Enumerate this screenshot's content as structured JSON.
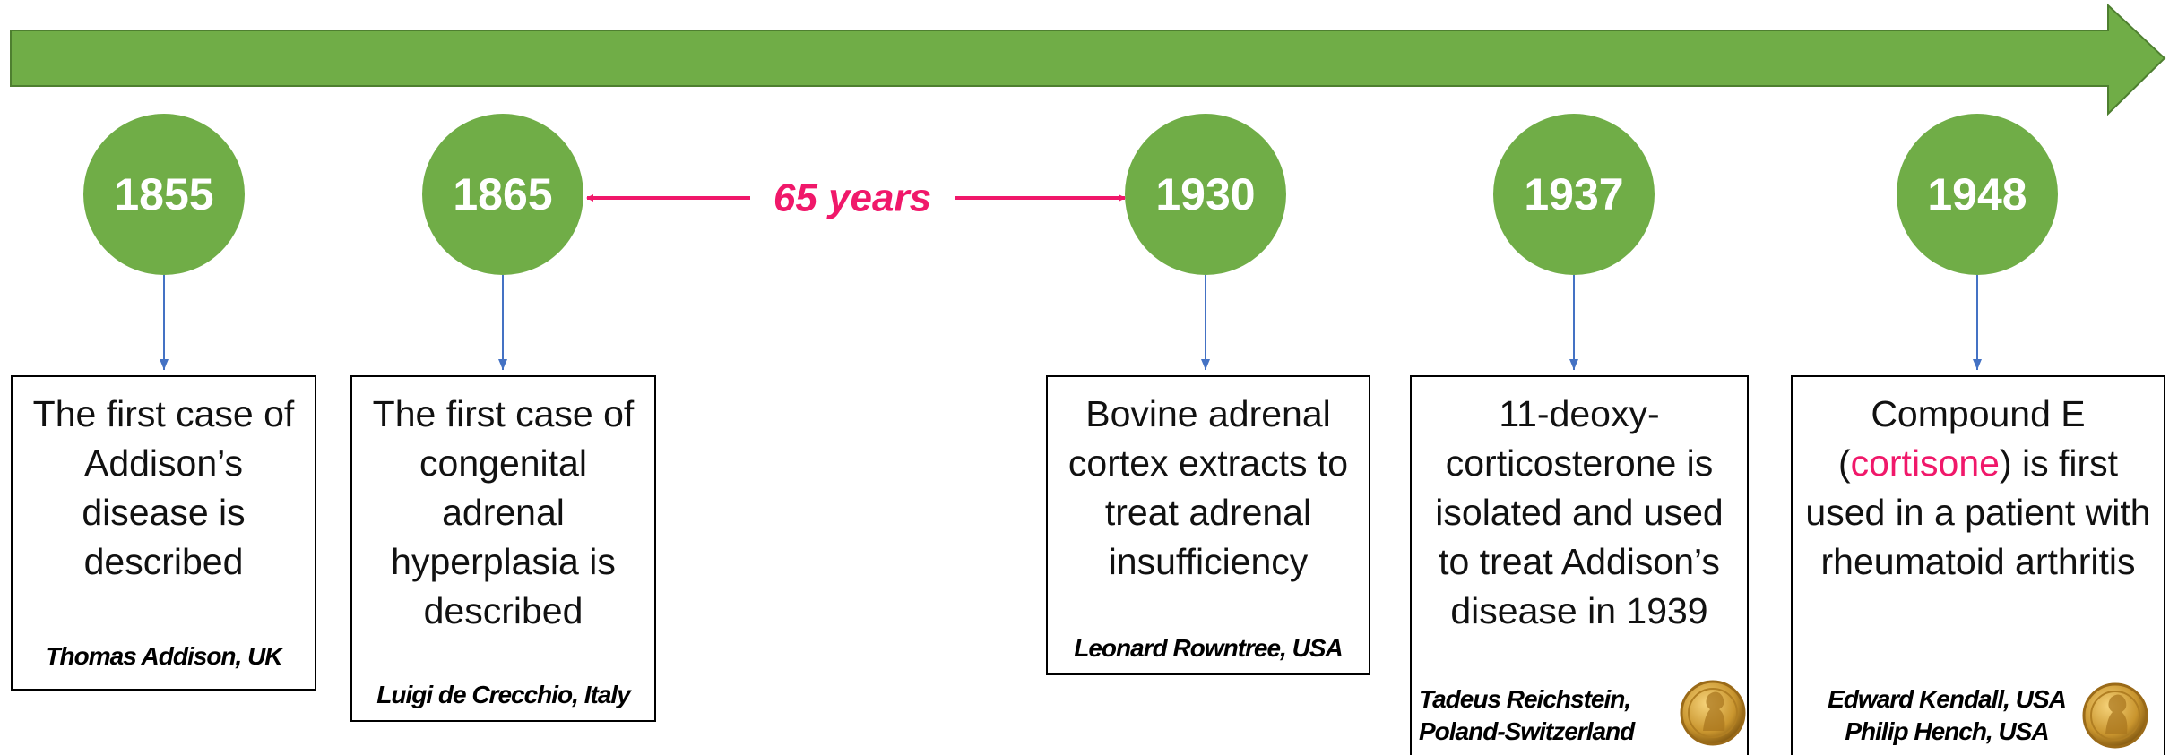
{
  "events": [
    {
      "year": "1855",
      "description": [
        "The first case of Addison’s disease is described"
      ],
      "authors": [
        "Thomas Addison, UK"
      ]
    },
    {
      "year": "1865",
      "description": [
        "The first case of congenital adrenal hyperplasia is described"
      ],
      "authors": [
        "Luigi de Crecchio, Italy"
      ]
    },
    {
      "year": "1930",
      "description": [
        "Bovine adrenal cortex extracts to treat adrenal insufficiency"
      ],
      "authors": [
        "Leonard Rowntree, USA"
      ]
    },
    {
      "year": "1937",
      "description": [
        "11-deoxy-corticosterone is isolated and used to treat Addison’s disease in 1939"
      ],
      "authors": [
        "Tadeus Reichstein,",
        "Poland-Switzerland"
      ]
    },
    {
      "year": "1948",
      "description": [
        "Compound E (",
        "cortisone",
        ") is first used in a patient with rheumatoid arthritis"
      ],
      "authors": [
        "Edward Kendall, USA",
        "Philip Hench, USA"
      ]
    }
  ],
  "interval": {
    "label": "65 years"
  }
}
